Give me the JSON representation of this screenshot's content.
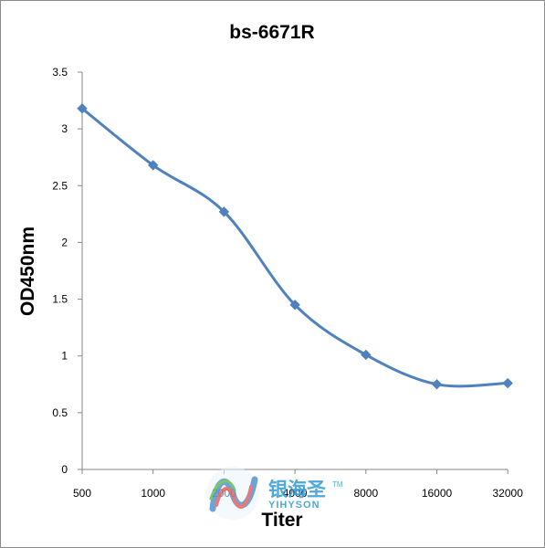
{
  "chart_data": {
    "type": "line",
    "title": "bs-6671R",
    "xlabel": "Titer",
    "ylabel": "OD450nm",
    "categories": [
      "500",
      "1000",
      "2000",
      "4000",
      "8000",
      "16000",
      "32000"
    ],
    "series": [
      {
        "values": [
          3.18,
          2.68,
          2.27,
          1.45,
          1.01,
          0.75,
          0.76
        ],
        "color": "#4f81bd"
      }
    ],
    "ylim": [
      0,
      3.5
    ],
    "yticks": [
      "0",
      "0.5",
      "1",
      "1.5",
      "2",
      "2.5",
      "3",
      "3.5"
    ],
    "grid": false,
    "legend": "none",
    "marker": "diamond",
    "smooth": true
  },
  "watermark": {
    "brand_cn": "银海圣",
    "brand_en": "YIHYSON",
    "tm": "TM",
    "color": "#3aa0d8"
  }
}
